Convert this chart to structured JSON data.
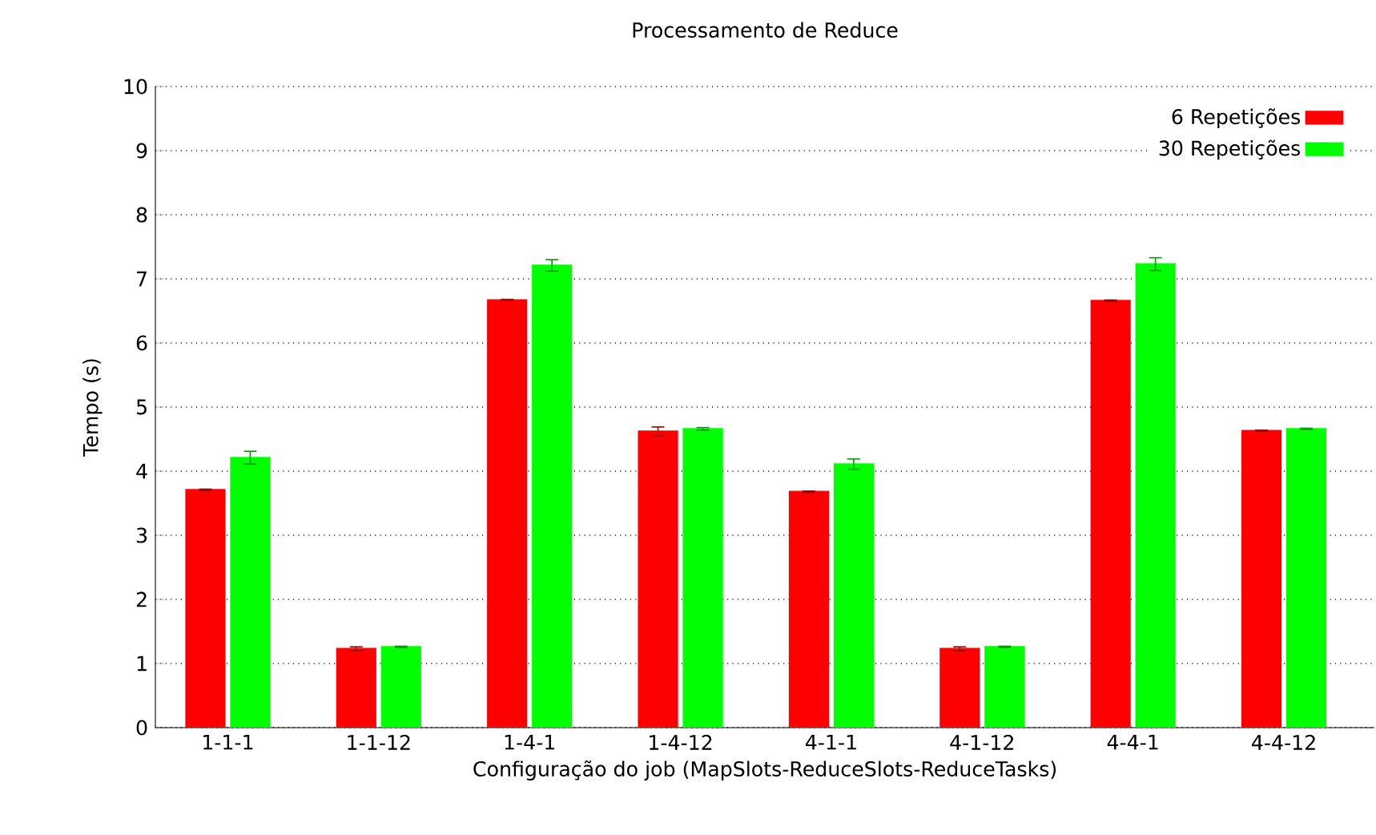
{
  "chart_data": {
    "type": "bar",
    "title": "Processamento de Reduce",
    "xlabel": "Configuração do job (MapSlots-ReduceSlots-ReduceTasks)",
    "ylabel": "Tempo (s)",
    "categories": [
      "1-1-1",
      "1-1-12",
      "1-4-1",
      "1-4-12",
      "4-1-1",
      "4-1-12",
      "4-4-1",
      "4-4-12"
    ],
    "series": [
      {
        "name": "6 Repetições",
        "color": "#ff0000",
        "values": [
          3.71,
          1.23,
          6.67,
          4.62,
          3.68,
          1.23,
          6.66,
          4.63
        ],
        "errors": [
          0.01,
          0.03,
          0.01,
          0.07,
          0.01,
          0.03,
          0.01,
          0.01
        ]
      },
      {
        "name": "30 Repetições",
        "color": "#00ff00",
        "values": [
          4.21,
          1.26,
          7.21,
          4.66,
          4.11,
          1.26,
          7.23,
          4.66
        ],
        "errors": [
          0.1,
          0.01,
          0.09,
          0.02,
          0.08,
          0.01,
          0.1,
          0.01
        ]
      }
    ],
    "ylim": [
      0,
      10
    ],
    "yticks": [
      0,
      1,
      2,
      3,
      4,
      5,
      6,
      7,
      8,
      9,
      10
    ],
    "grid": "y",
    "legend": "top right"
  }
}
